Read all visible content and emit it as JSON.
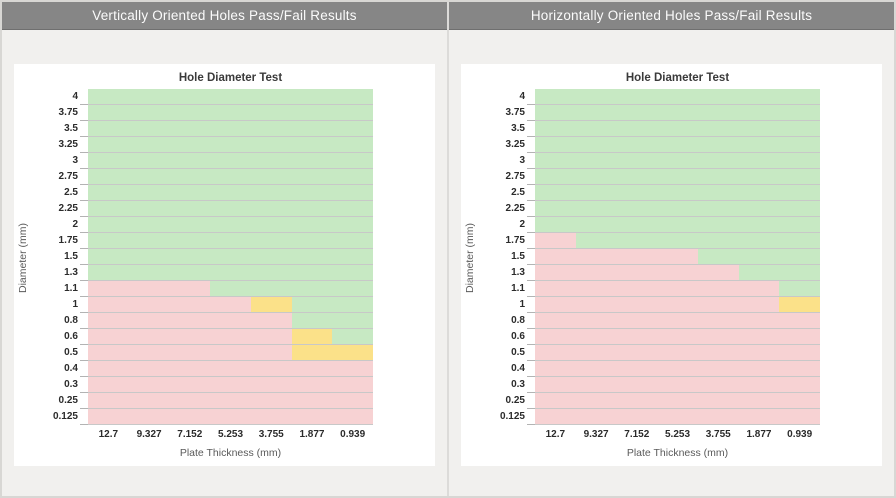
{
  "colors": {
    "header_bg": "#868686",
    "header_text": "#fbfbfb",
    "page_bg": "#f1f0ee",
    "card_bg": "#ffffff",
    "gridline": "#9e9e9e",
    "cell": {
      "pass": "#c7e9c3",
      "fail": "#f7d2d3",
      "marginal": "#fbe189"
    }
  },
  "cell_codes": {
    "P": "pass",
    "F": "fail",
    "M": "marginal"
  },
  "panels": [
    {
      "header": "Vertically Oriented Holes Pass/Fail Results"
    },
    {
      "header": "Horizontally Oriented Holes Pass/Fail Results"
    }
  ],
  "chart_data": [
    {
      "type": "heatmap",
      "title": "Hole Diameter Test",
      "xlabel": "Plate Thickness (mm)",
      "ylabel": "Diameter (mm)",
      "x": [
        "12.7",
        "9.327",
        "7.152",
        "5.253",
        "3.755",
        "1.877",
        "0.939"
      ],
      "y": [
        "4",
        "3.75",
        "3.5",
        "3.25",
        "3",
        "2.75",
        "2.5",
        "2.25",
        "2",
        "1.75",
        "1.5",
        "1.3",
        "1.1",
        "1",
        "0.8",
        "0.6",
        "0.5",
        "0.4",
        "0.3",
        "0.25",
        "0.125"
      ],
      "legend": {
        "pass": "green",
        "fail": "pink",
        "marginal": "yellow"
      },
      "grid": "horizontal-only",
      "rows": [
        "PPPPPPP",
        "PPPPPPP",
        "PPPPPPP",
        "PPPPPPP",
        "PPPPPPP",
        "PPPPPPP",
        "PPPPPPP",
        "PPPPPPP",
        "PPPPPPP",
        "PPPPPPP",
        "PPPPPPP",
        "PPPPPPP",
        "FFFPPPP",
        "FFFFMPP",
        "FFFFFPP",
        "FFFFFMP",
        "FFFFFMM",
        "FFFFFFF",
        "FFFFFFF",
        "FFFFFFF",
        "FFFFFFF"
      ]
    },
    {
      "type": "heatmap",
      "title": "Hole Diameter Test",
      "xlabel": "Plate Thickness (mm)",
      "ylabel": "Diameter (mm)",
      "x": [
        "12.7",
        "9.327",
        "7.152",
        "5.253",
        "3.755",
        "1.877",
        "0.939"
      ],
      "y": [
        "4",
        "3.75",
        "3.5",
        "3.25",
        "3",
        "2.75",
        "2.5",
        "2.25",
        "2",
        "1.75",
        "1.5",
        "1.3",
        "1.1",
        "1",
        "0.8",
        "0.6",
        "0.5",
        "0.4",
        "0.3",
        "0.25",
        "0.125"
      ],
      "legend": {
        "pass": "green",
        "fail": "pink",
        "marginal": "yellow"
      },
      "grid": "horizontal-only",
      "rows": [
        "PPPPPPP",
        "PPPPPPP",
        "PPPPPPP",
        "PPPPPPP",
        "PPPPPPP",
        "PPPPPPP",
        "PPPPPPP",
        "PPPPPPP",
        "PPPPPPP",
        "FPPPPPP",
        "FFFFPPP",
        "FFFFFPP",
        "FFFFFFP",
        "FFFFFFM",
        "FFFFFFF",
        "FFFFFFF",
        "FFFFFFF",
        "FFFFFFF",
        "FFFFFFF",
        "FFFFFFF",
        "FFFFFFF"
      ]
    }
  ]
}
